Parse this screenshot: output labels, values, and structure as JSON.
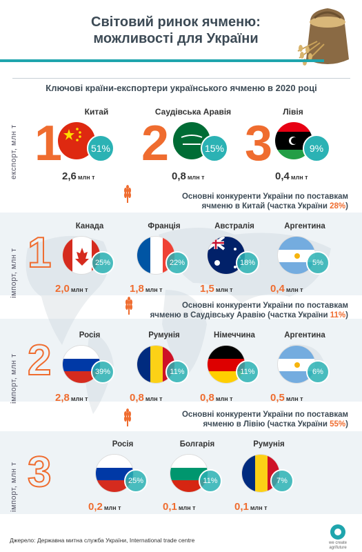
{
  "header": {
    "title_line1": "Світовий ринок ячменю:",
    "title_line2": "можливості для України"
  },
  "subtitle": "Ключові країни-експортери українського ячменю в 2020 році",
  "side_labels": {
    "export": "експорт, млн т",
    "import": "імпорт, млн т"
  },
  "unit": "млн т",
  "exporters": [
    {
      "rank": "1",
      "name": "Китай",
      "share": "51%",
      "volume": "2,6",
      "flag": "china-flag"
    },
    {
      "rank": "2",
      "name": "Саудівська Аравія",
      "share": "15%",
      "volume": "0,8",
      "flag": "saudi-arabia-flag"
    },
    {
      "rank": "3",
      "name": "Лівія",
      "share": "9%",
      "volume": "0,4",
      "flag": "libya-flag"
    }
  ],
  "markets": [
    {
      "rank": "1",
      "title_line1": "Основні конкуренти України по поставкам",
      "title_line2": "ячменю в Китай (частка України ",
      "ua_share": "28%",
      "title_end": ")",
      "competitors": [
        {
          "name": "Канада",
          "share": "25%",
          "volume": "2,0",
          "flag": "canada-flag"
        },
        {
          "name": "Франція",
          "share": "22%",
          "volume": "1,8",
          "flag": "france-flag"
        },
        {
          "name": "Австралія",
          "share": "18%",
          "volume": "1,5",
          "flag": "australia-flag"
        },
        {
          "name": "Аргентина",
          "share": "5%",
          "volume": "0,4",
          "flag": "argentina-flag"
        }
      ]
    },
    {
      "rank": "2",
      "title_line1": "Основні конкуренти України по поставкам",
      "title_line2": "ячменю в Саудівську Аравію (частка України ",
      "ua_share": "11%",
      "title_end": ")",
      "competitors": [
        {
          "name": "Росія",
          "share": "39%",
          "volume": "2,8",
          "flag": "russia-flag"
        },
        {
          "name": "Румунія",
          "share": "11%",
          "volume": "0,8",
          "flag": "romania-flag"
        },
        {
          "name": "Німеччина",
          "share": "11%",
          "volume": "0,8",
          "flag": "germany-flag"
        },
        {
          "name": "Аргентина",
          "share": "6%",
          "volume": "0,5",
          "flag": "argentina-flag"
        }
      ]
    },
    {
      "rank": "3",
      "title_line1": "Основні конкуренти України по поставкам",
      "title_line2": "ячменю в Лівію (частка України ",
      "ua_share": "55%",
      "title_end": ")",
      "competitors": [
        {
          "name": "Росія",
          "share": "25%",
          "volume": "0,2",
          "flag": "russia-flag"
        },
        {
          "name": "Болгарія",
          "share": "11%",
          "volume": "0,1",
          "flag": "bulgaria-flag"
        },
        {
          "name": "Румунія",
          "share": "7%",
          "volume": "0,1",
          "flag": "romania-flag"
        }
      ]
    }
  ],
  "footer": {
    "source": "Джерело: Державна митна служба України, International trade centre",
    "logo_line1": "we create",
    "logo_line2": "agrifuture"
  },
  "colors": {
    "accent_orange": "#ef6c2f",
    "accent_teal": "#2bb2b4",
    "dark_text": "#3c4a55"
  }
}
